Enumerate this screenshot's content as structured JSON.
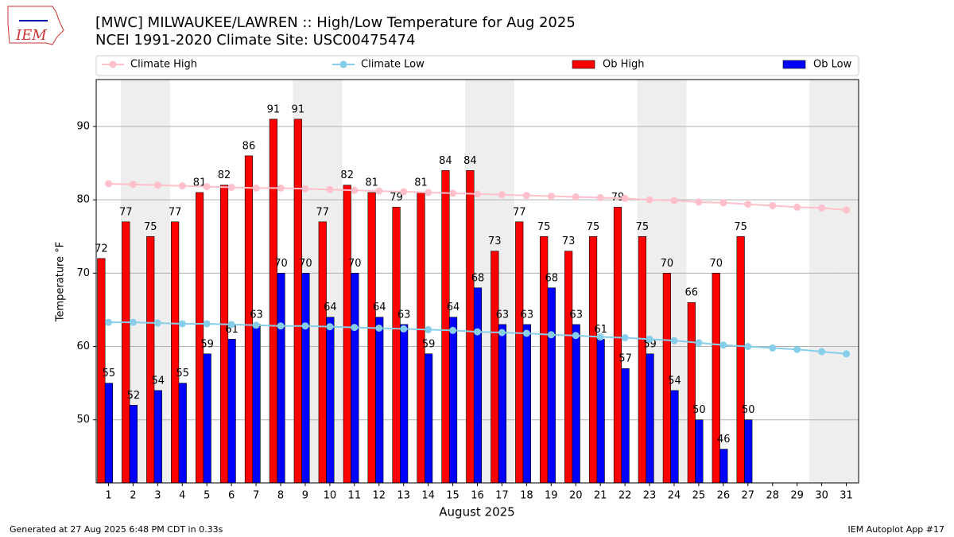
{
  "chart_data": {
    "type": "bar_line",
    "logo": "IEM",
    "title": "[MWC] MILWAUKEE/LAWREN :: High/Low Temperature for Aug 2025",
    "subtitle": "NCEI 1991-2020 Climate Site: USC00475474",
    "ylabel": "Temperature °F",
    "xlabel": "August 2025",
    "categories": [
      "1",
      "2",
      "3",
      "4",
      "5",
      "6",
      "7",
      "8",
      "9",
      "10",
      "11",
      "12",
      "13",
      "14",
      "15",
      "16",
      "17",
      "18",
      "19",
      "20",
      "21",
      "22",
      "23",
      "24",
      "25",
      "26",
      "27",
      "28",
      "29",
      "30",
      "31"
    ],
    "shaded_days": [
      2,
      3,
      9,
      10,
      16,
      17,
      23,
      24,
      30,
      31
    ],
    "ylim": [
      41.4,
      96.4
    ],
    "yticks": [
      50,
      60,
      70,
      80,
      90
    ],
    "grid": true,
    "series": [
      {
        "name": "Climate High",
        "kind": "line",
        "color": "#ffc0cb",
        "values": [
          82.2,
          82.1,
          82.0,
          81.9,
          81.8,
          81.7,
          81.6,
          81.6,
          81.5,
          81.4,
          81.3,
          81.2,
          81.1,
          81.0,
          80.9,
          80.8,
          80.7,
          80.6,
          80.5,
          80.4,
          80.3,
          80.2,
          80.0,
          79.9,
          79.7,
          79.6,
          79.4,
          79.2,
          79.0,
          78.9,
          78.6
        ]
      },
      {
        "name": "Climate Low",
        "kind": "line",
        "color": "#87ceeb",
        "values": [
          63.3,
          63.3,
          63.2,
          63.1,
          63.1,
          63.0,
          62.9,
          62.8,
          62.8,
          62.7,
          62.6,
          62.5,
          62.4,
          62.3,
          62.2,
          62.0,
          61.9,
          61.8,
          61.6,
          61.5,
          61.3,
          61.2,
          61.0,
          60.8,
          60.5,
          60.2,
          60.0,
          59.8,
          59.6,
          59.3,
          59.0
        ]
      },
      {
        "name": "Ob High",
        "kind": "bar",
        "color": "#ff0000",
        "values": [
          72,
          77,
          75,
          77,
          81,
          82,
          86,
          91,
          91,
          77,
          82,
          81,
          79,
          81,
          84,
          84,
          73,
          77,
          75,
          73,
          75,
          79,
          75,
          70,
          66,
          70,
          75,
          null,
          null,
          null,
          null
        ]
      },
      {
        "name": "Ob Low",
        "kind": "bar",
        "color": "#0000ff",
        "values": [
          55,
          52,
          54,
          55,
          59,
          61,
          63,
          70,
          70,
          64,
          70,
          64,
          63,
          59,
          64,
          68,
          63,
          63,
          68,
          63,
          61,
          57,
          59,
          54,
          50,
          46,
          50,
          null,
          null,
          null,
          null
        ]
      }
    ],
    "footer_left": "Generated at 27 Aug 2025 6:48 PM CDT in 0.33s",
    "footer_right": "IEM Autoplot App #17"
  }
}
